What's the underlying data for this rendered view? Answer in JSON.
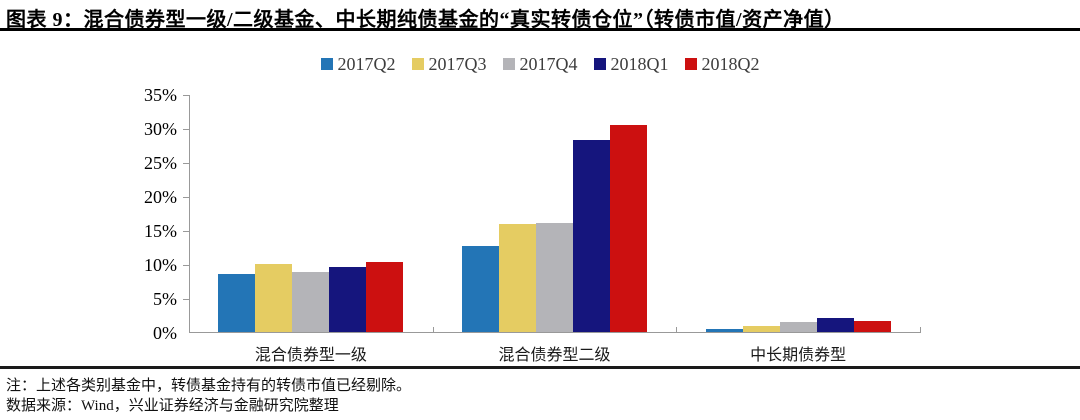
{
  "header": {
    "title": "图表 9：混合债券型一级/二级基金、中长期纯债基金的“真实转债仓位”（转债市值/资产净值）"
  },
  "chart_data": {
    "type": "bar",
    "categories": [
      "混合债券型一级",
      "混合债券型二级",
      "中长期债券型"
    ],
    "series": [
      {
        "name": "2017Q2",
        "color": "#2375B6",
        "values": [
          8.5,
          12.7,
          0.5
        ]
      },
      {
        "name": "2017Q3",
        "color": "#E5CC62",
        "values": [
          10.0,
          15.9,
          0.9
        ]
      },
      {
        "name": "2017Q4",
        "color": "#B4B4B8",
        "values": [
          8.8,
          16.0,
          1.4
        ]
      },
      {
        "name": "2018Q1",
        "color": "#15157D",
        "values": [
          9.6,
          28.2,
          2.1
        ]
      },
      {
        "name": "2018Q2",
        "color": "#CC1010",
        "values": [
          10.3,
          30.4,
          1.6
        ]
      }
    ],
    "ylabel": "",
    "xlabel": "",
    "ylim": [
      0,
      35
    ],
    "ytick_step": 5,
    "ytick_labels": [
      "0%",
      "5%",
      "10%",
      "15%",
      "20%",
      "25%",
      "30%",
      "35%"
    ],
    "legend_position": "top",
    "grid": false,
    "axis_color": "#999999"
  },
  "footer": {
    "note": "注：上述各类别基金中，转债基金持有的转债市值已经剔除。",
    "source": "数据来源：Wind，兴业证券经济与金融研究院整理"
  }
}
